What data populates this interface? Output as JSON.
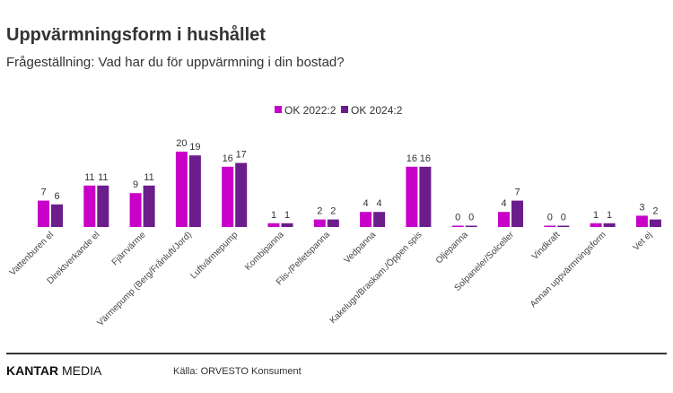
{
  "header": {
    "title": "Uppvärmningsform i hushållet",
    "subtitle": "Frågeställning: Vad har du för uppvärmning i din bostad?"
  },
  "footer": {
    "brand_bold": "KANTAR",
    "brand_light": " MEDIA",
    "source": "Källa: ORVESTO Konsument"
  },
  "chart_data": {
    "type": "bar",
    "title": "Uppvärmningsform i hushållet",
    "categories": [
      "Vattenburen el",
      "Direktverkande el",
      "Fjärrvärme",
      "Värmepump (Berg/Frånluft/Jord)",
      "Luftvärmepump",
      "Kombipanna",
      "Flis-/Pelletspanna",
      "Vedpanna",
      "Kakelugn/Braskam./Öppen spis",
      "Oljepanna",
      "Solpaneler/Solceller",
      "Vindkraft",
      "Annan uppvärmningsform",
      "Vet ej"
    ],
    "series": [
      {
        "name": "OK 2022:2",
        "color": "#c800c8",
        "values": [
          7,
          11,
          9,
          20,
          16,
          1,
          2,
          4,
          16,
          0,
          4,
          0,
          1,
          3
        ]
      },
      {
        "name": "OK 2024:2",
        "color": "#6b1d8c",
        "values": [
          6,
          11,
          11,
          19,
          17,
          1,
          2,
          4,
          16,
          0,
          7,
          0,
          1,
          2
        ]
      }
    ],
    "legend": "top-center",
    "grid": false,
    "ylim": [
      0,
      20
    ]
  }
}
